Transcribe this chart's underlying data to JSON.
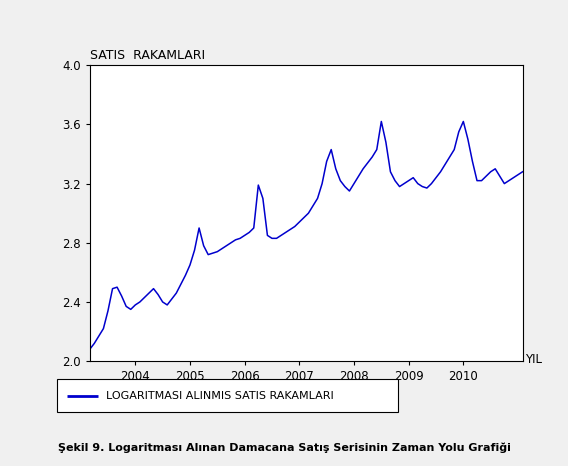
{
  "title": "SATIS  RAKAMLARI",
  "yil_label": "YIL",
  "legend_label": "LOGARITMASI ALINMIS SATIS RAKAMLARI",
  "caption": "Şekil 9. Logaritması Alınan Damacana Satış Serisinin Zaman Yolu Grafiği",
  "ylim": [
    2.0,
    4.0
  ],
  "yticks": [
    2.0,
    2.4,
    2.8,
    3.2,
    3.6,
    4.0
  ],
  "line_color": "#0000CD",
  "background_color": "#f0f0f0",
  "plot_bg_color": "#ffffff",
  "start_year": 2003,
  "start_month": 3,
  "n_points": 96,
  "values": [
    2.08,
    2.12,
    2.17,
    2.22,
    2.34,
    2.49,
    2.5,
    2.44,
    2.37,
    2.35,
    2.38,
    2.4,
    2.43,
    2.46,
    2.49,
    2.45,
    2.4,
    2.38,
    2.42,
    2.46,
    2.52,
    2.58,
    2.65,
    2.75,
    2.9,
    2.78,
    2.72,
    2.73,
    2.74,
    2.76,
    2.78,
    2.8,
    2.82,
    2.83,
    2.85,
    2.87,
    2.9,
    3.19,
    3.1,
    2.85,
    2.83,
    2.83,
    2.85,
    2.87,
    2.89,
    2.91,
    2.94,
    2.97,
    3.0,
    3.05,
    3.1,
    3.2,
    3.35,
    3.43,
    3.3,
    3.22,
    3.18,
    3.15,
    3.2,
    3.25,
    3.3,
    3.34,
    3.38,
    3.43,
    3.62,
    3.48,
    3.28,
    3.22,
    3.18,
    3.2,
    3.22,
    3.24,
    3.2,
    3.18,
    3.17,
    3.2,
    3.24,
    3.28,
    3.33,
    3.38,
    3.43,
    3.55,
    3.62,
    3.5,
    3.35,
    3.22,
    3.22,
    3.25,
    3.28,
    3.3,
    3.25,
    3.2,
    3.22,
    3.24,
    3.26,
    3.28
  ],
  "xtick_years": [
    2004,
    2005,
    2006,
    2007,
    2008,
    2009,
    2010
  ],
  "line_width": 1.1,
  "tick_fontsize": 8.5,
  "title_fontsize": 9,
  "legend_fontsize": 8,
  "caption_fontsize": 8
}
